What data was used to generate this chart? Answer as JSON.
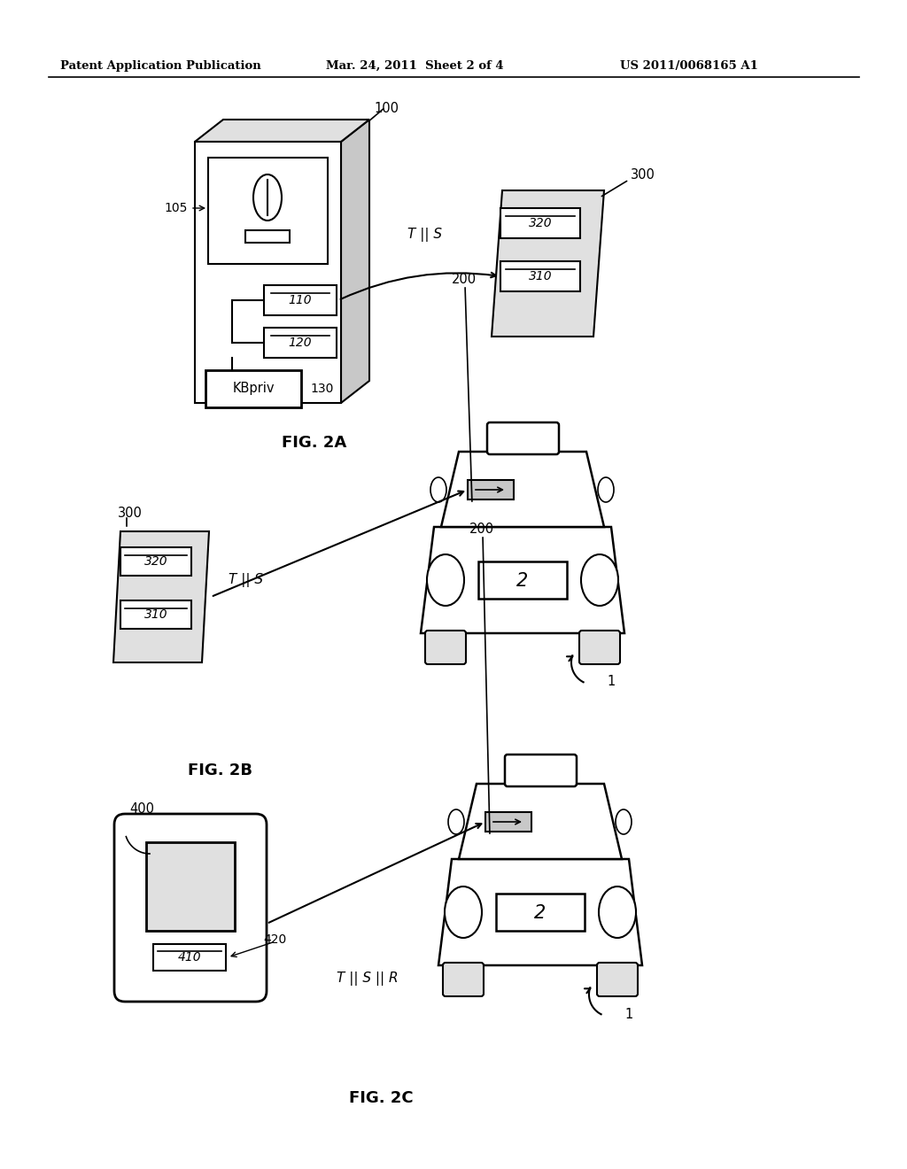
{
  "bg_color": "#ffffff",
  "header_left": "Patent Application Publication",
  "header_mid": "Mar. 24, 2011  Sheet 2 of 4",
  "header_right": "US 2011/0068165 A1",
  "fig2a_label": "FIG. 2A",
  "fig2b_label": "FIG. 2B",
  "fig2c_label": "FIG. 2C",
  "line_color": "#000000",
  "gray_light": "#e0e0e0",
  "gray_mid": "#c8c8c8",
  "gray_dark": "#b0b0b0"
}
